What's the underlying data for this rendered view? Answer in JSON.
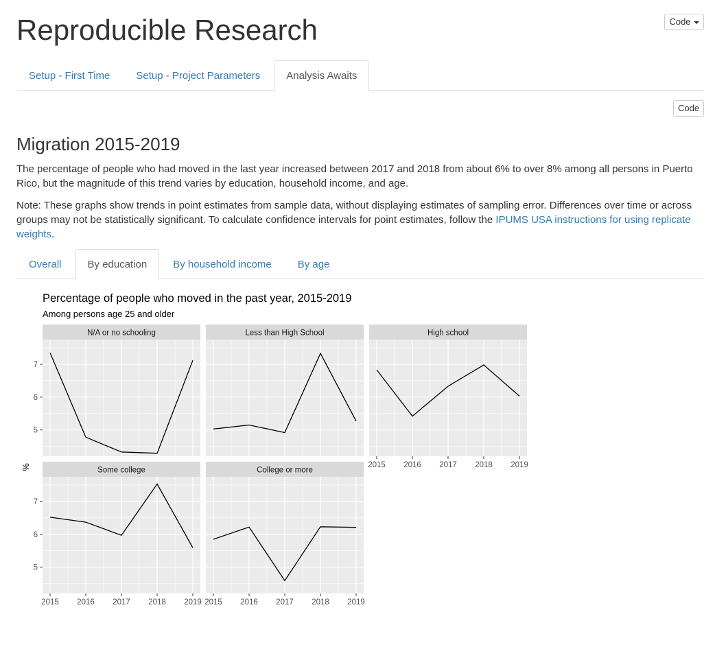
{
  "header": {
    "title": "Reproducible Research",
    "code_button_label": "Code"
  },
  "main_tabs": [
    {
      "label": "Setup - First Time",
      "active": false
    },
    {
      "label": "Setup - Project Parameters",
      "active": false
    },
    {
      "label": "Analysis Awaits",
      "active": true
    }
  ],
  "section": {
    "code_button_label": "Code",
    "title": "Migration 2015-2019",
    "paragraph1": "The percentage of people who had moved in the last year increased between 2017 and 2018 from about 6% to over 8% among all persons in Puerto Rico, but the magnitude of this trend varies by education, household income, and age.",
    "paragraph2_text": "Note: These graphs show trends in point estimates from sample data, without displaying estimates of sampling error. Differences over time or across groups may not be statistically significant. To calculate confidence intervals for point estimates, follow the ",
    "paragraph2_link": "IPUMS USA instructions for using replicate weights",
    "paragraph2_end": "."
  },
  "sub_tabs": [
    {
      "label": "Overall",
      "active": false
    },
    {
      "label": "By education",
      "active": true
    },
    {
      "label": "By household income",
      "active": false
    },
    {
      "label": "By age",
      "active": false
    }
  ],
  "colors": {
    "panel_bg": "#ebebeb",
    "strip_bg": "#d9d9d9",
    "grid": "#ffffff",
    "line": "#000000",
    "link": "#337ab7"
  },
  "chart_data": {
    "type": "line",
    "title": "Percentage of people who moved in the past year, 2015-2019",
    "subtitle": "Among persons age 25 and older",
    "ylabel": "%",
    "xlabel": "",
    "x": [
      2015,
      2016,
      2017,
      2018,
      2019
    ],
    "x_tick_labels": [
      "2015",
      "2016",
      "2017",
      "2018",
      "2019"
    ],
    "y_ticks": [
      5,
      6,
      7
    ],
    "ylim": [
      4.2,
      7.75
    ],
    "grid": true,
    "facets": [
      {
        "name": "N/A or no schooling",
        "values": [
          7.35,
          4.78,
          4.33,
          4.29,
          7.12
        ]
      },
      {
        "name": "Less than High School",
        "values": [
          5.03,
          5.15,
          4.92,
          7.33,
          5.27
        ]
      },
      {
        "name": "High school",
        "values": [
          6.83,
          5.42,
          6.33,
          6.98,
          6.03
        ]
      },
      {
        "name": "Some college",
        "values": [
          6.52,
          6.37,
          5.97,
          7.53,
          5.59
        ]
      },
      {
        "name": "College or more",
        "values": [
          5.85,
          6.22,
          4.59,
          6.23,
          6.21
        ]
      }
    ]
  }
}
